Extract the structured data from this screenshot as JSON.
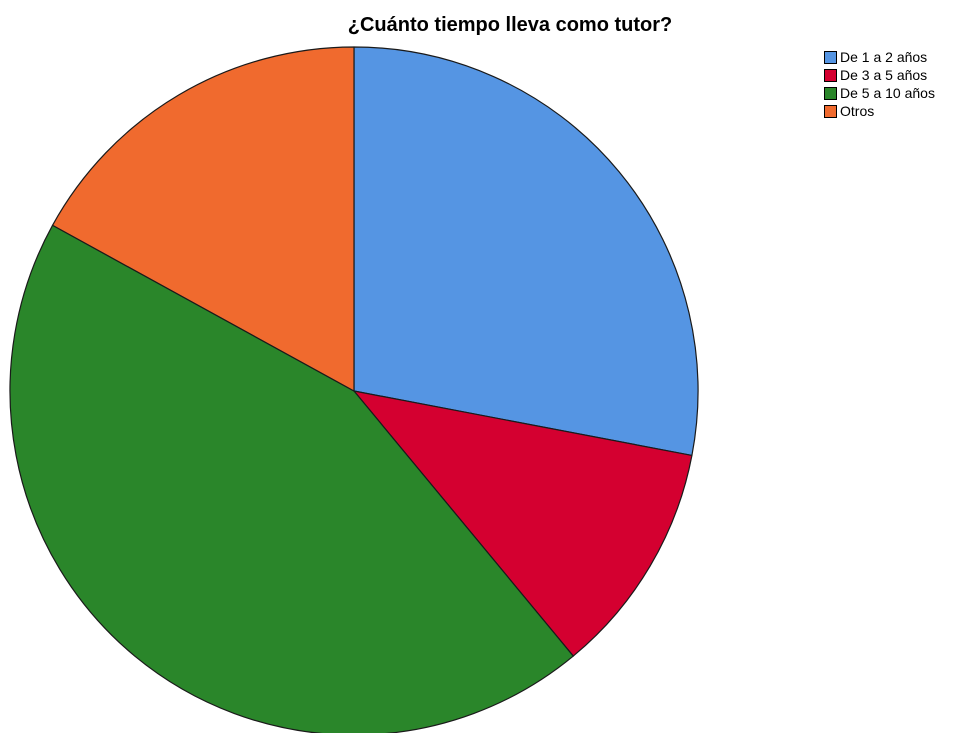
{
  "chart_data": {
    "type": "pie",
    "title": "¿Cuánto tiempo lleva como tutor?",
    "legend_position": "top-right",
    "slices": [
      {
        "label": "De 1 a 2 años",
        "percent": 28.0,
        "color": "#5595E3"
      },
      {
        "label": "De 3 a 5 años",
        "percent": 11.0,
        "color": "#D40030"
      },
      {
        "label": "De 5 a 10 años",
        "percent": 44.0,
        "color": "#2A862A"
      },
      {
        "label": "Otros",
        "percent": 17.0,
        "color": "#F06A2E"
      }
    ]
  }
}
